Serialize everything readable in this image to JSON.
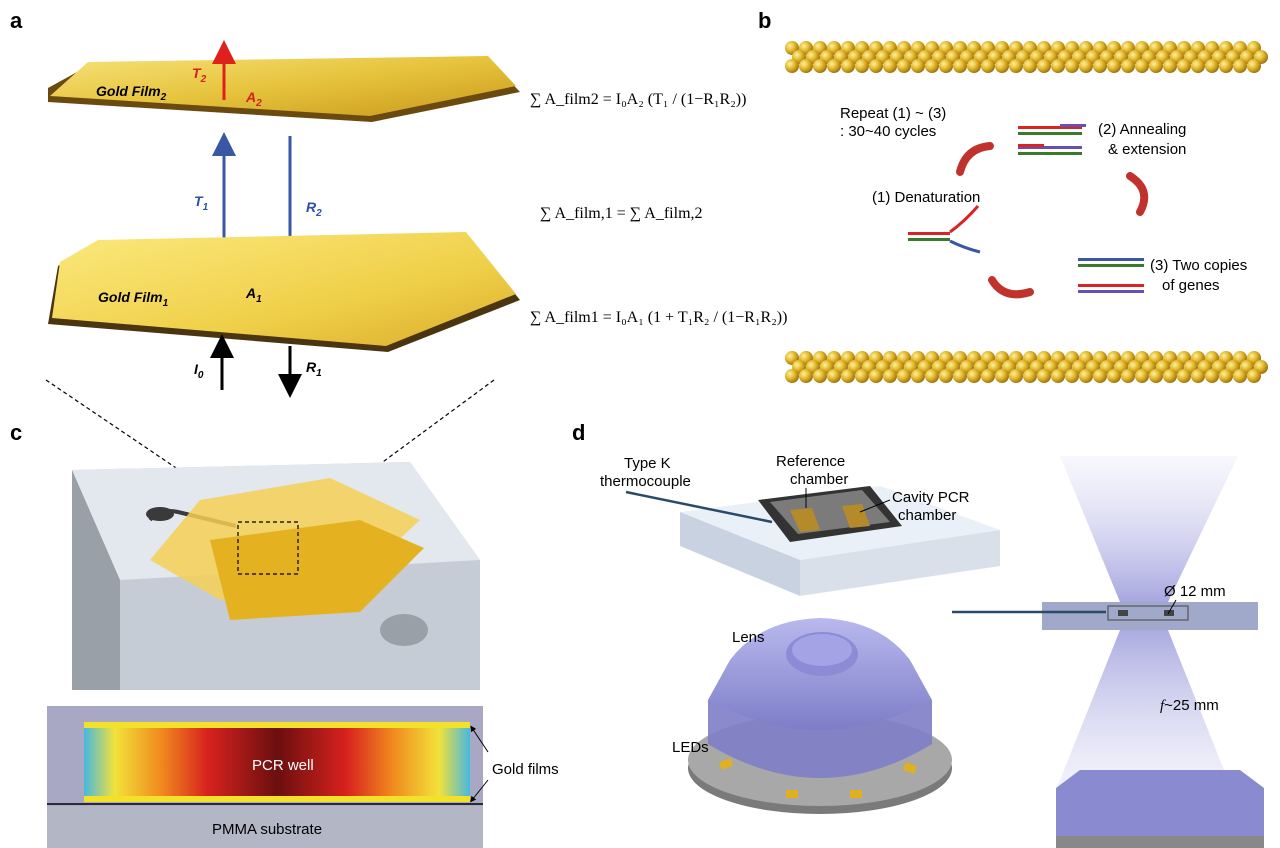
{
  "panels": {
    "a": {
      "label": "a",
      "film_top_text": "Gold Film",
      "film_top_sub": "2",
      "film_bottom_text": "Gold Film",
      "film_bottom_sub": "1",
      "T2": "T",
      "T2_sub": "2",
      "A2": "A",
      "A2_sub": "2",
      "T1": "T",
      "T1_sub": "1",
      "R2": "R",
      "R2_sub": "2",
      "A1": "A",
      "A1_sub": "1",
      "I0": "I",
      "I0_sub": "0",
      "R1": "R",
      "R1_sub": "1",
      "eq_top": "∑ A_film2 = I₀A₂ (T₁ / (1−R₁R₂))",
      "eq_mid": "∑ A_film,1 = ∑ A_film,2",
      "eq_bottom": "∑ A_film1 = I₀A₁ (1 + T₁R₂ / (1−R₁R₂))"
    },
    "b": {
      "label": "b",
      "repeat_line1": "Repeat (1) ~ (3)",
      "repeat_line2": ": 30~40 cycles",
      "step2_line1": "(2) Annealing",
      "step2_line2": "& extension",
      "step1": "(1) Denaturation",
      "step3_line1": "(3) Two copies",
      "step3_line2": "of genes"
    },
    "c": {
      "label": "c",
      "well_label": "PCR well",
      "films_label": "Gold films",
      "substrate_label": "PMMA substrate"
    },
    "d": {
      "label": "d",
      "thermocouple_line1": "Type K",
      "thermocouple_line2": "thermocouple",
      "reference_line1": "Reference",
      "reference_line2": "chamber",
      "cavity_line1": "Cavity PCR",
      "cavity_line2": "chamber",
      "lens": "Lens",
      "leds": "LEDs",
      "diameter": "Ø 12 mm",
      "focal_f": "f",
      "focal_rest": "~25 mm"
    }
  },
  "colors": {
    "gold": "#e8c43a",
    "gold_dark": "#b8891c",
    "arrow_red": "#e0201c",
    "arrow_blue": "#3a57a6",
    "label_red": "#d42020",
    "label_blue": "#2f4fa8",
    "lens_purple": "#9a9ad8",
    "cycle_red": "#c0332c"
  }
}
